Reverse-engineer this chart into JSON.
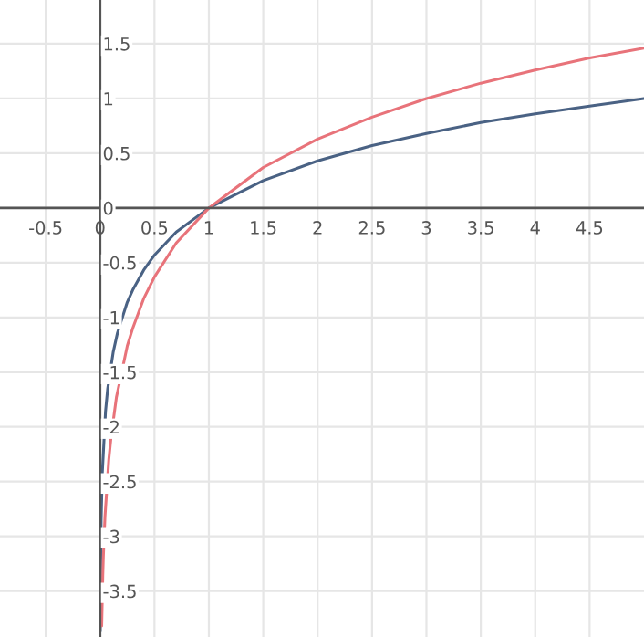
{
  "chart_data": {
    "type": "line",
    "xlim": [
      -0.92,
      5.0
    ],
    "ylim": [
      -3.92,
      1.9
    ],
    "xticks": [
      -0.5,
      0,
      0.5,
      1,
      1.5,
      2,
      2.5,
      3,
      3.5,
      4,
      4.5
    ],
    "yticks": [
      -3.5,
      -3,
      -2.5,
      -2,
      -1.5,
      -1,
      -0.5,
      0,
      0.5,
      1,
      1.5
    ],
    "grid": true,
    "marker": "none",
    "line_style": "solid",
    "series": [
      {
        "color": "#4a6284",
        "x": [
          0.002,
          0.005,
          0.01,
          0.02,
          0.05,
          0.07,
          0.12,
          0.16,
          0.25,
          0.3,
          0.4,
          0.5,
          0.7,
          1,
          1.5,
          2,
          2.5,
          3,
          3.5,
          4,
          4.5,
          5
        ],
        "values": [
          -3.86,
          -3.29,
          -2.86,
          -2.43,
          -1.86,
          -1.65,
          -1.32,
          -1.14,
          -0.86,
          -0.75,
          -0.57,
          -0.43,
          -0.22,
          0,
          0.25,
          0.43,
          0.57,
          0.68,
          0.78,
          0.86,
          0.93,
          1.0
        ]
      },
      {
        "color": "#e8737a",
        "x": [
          0.015,
          0.025,
          0.03,
          0.045,
          0.08,
          0.1,
          0.15,
          0.25,
          0.3,
          0.4,
          0.5,
          0.7,
          1,
          1.5,
          2,
          2.5,
          3,
          3.5,
          4,
          4.5,
          5
        ],
        "values": [
          -3.82,
          -3.36,
          -3.19,
          -2.82,
          -2.3,
          -2.1,
          -1.73,
          -1.26,
          -1.1,
          -0.83,
          -0.63,
          -0.32,
          0,
          0.37,
          0.63,
          0.83,
          1.0,
          1.14,
          1.26,
          1.37,
          1.46
        ]
      }
    ]
  }
}
